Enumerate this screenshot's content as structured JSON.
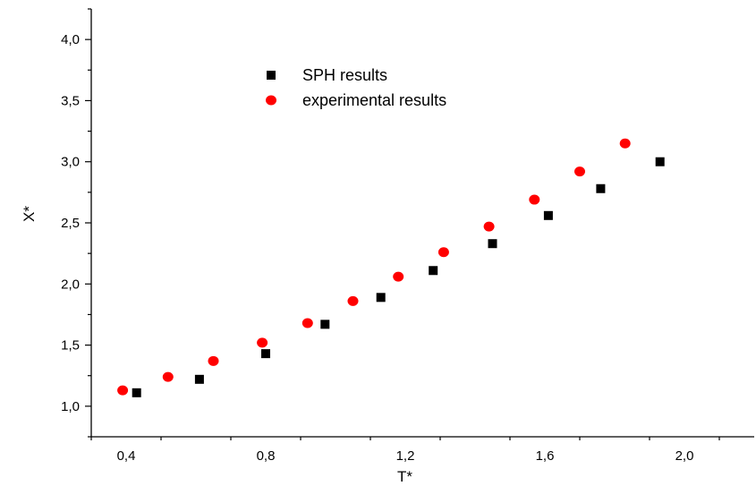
{
  "chart_data": {
    "type": "scatter",
    "title": "",
    "xlabel": "T*",
    "ylabel": "X*",
    "xlim": [
      0.3,
      2.2
    ],
    "ylim": [
      0.75,
      4.25
    ],
    "x_ticks": [
      0.4,
      0.8,
      1.2,
      1.6,
      2.0
    ],
    "x_tick_labels": [
      "0,4",
      "0,8",
      "1,2",
      "1,6",
      "2,0"
    ],
    "y_ticks": [
      1.0,
      1.5,
      2.0,
      2.5,
      3.0,
      3.5,
      4.0
    ],
    "y_tick_labels": [
      "1,0",
      "1,5",
      "2,0",
      "2,5",
      "3,0",
      "3,5",
      "4,0"
    ],
    "grid": false,
    "legend_position": "top-center",
    "series": [
      {
        "name": "SPH results",
        "marker": "square",
        "color": "#000000",
        "x": [
          0.43,
          0.61,
          0.8,
          0.97,
          1.13,
          1.28,
          1.45,
          1.61,
          1.76,
          1.93
        ],
        "y": [
          1.11,
          1.22,
          1.43,
          1.67,
          1.89,
          2.11,
          2.33,
          2.56,
          2.78,
          3.0
        ]
      },
      {
        "name": "experimental results",
        "marker": "circle",
        "color": "#ff0000",
        "x": [
          0.39,
          0.52,
          0.65,
          0.79,
          0.92,
          1.05,
          1.18,
          1.31,
          1.44,
          1.57,
          1.7,
          1.83
        ],
        "y": [
          1.13,
          1.24,
          1.37,
          1.52,
          1.68,
          1.86,
          2.06,
          2.26,
          2.47,
          2.69,
          2.92,
          3.15
        ]
      }
    ]
  }
}
